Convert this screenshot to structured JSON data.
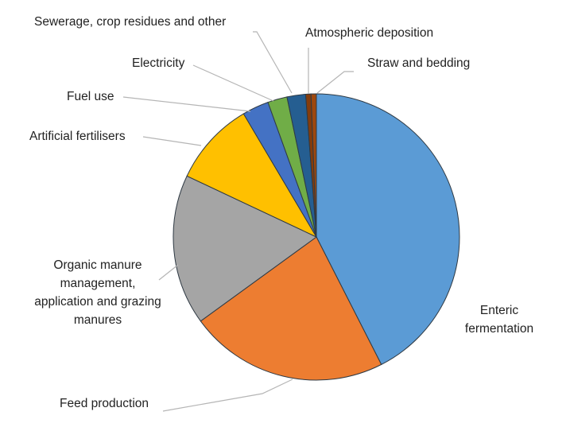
{
  "chart_data": {
    "type": "pie",
    "title": "",
    "legend": "none",
    "slices": [
      {
        "label": "Enteric fermentation",
        "lines": [
          "Enteric",
          "fermentation"
        ],
        "value": 42.5,
        "color": "#5b9bd5"
      },
      {
        "label": "Feed production",
        "lines": [
          "Feed production"
        ],
        "value": 22.5,
        "color": "#ed7d31"
      },
      {
        "label": "Organic manure management, application and grazing manures",
        "lines": [
          "Organic manure",
          "management,",
          "application and grazing",
          "manures"
        ],
        "value": 17.0,
        "color": "#a5a5a5"
      },
      {
        "label": "Artificial fertilisers",
        "lines": [
          "Artificial fertilisers"
        ],
        "value": 9.5,
        "color": "#ffc000"
      },
      {
        "label": "Fuel use",
        "lines": [
          "Fuel use"
        ],
        "value": 3.0,
        "color": "#4472c4"
      },
      {
        "label": "Electricity",
        "lines": [
          "Electricity"
        ],
        "value": 2.2,
        "color": "#70ad47"
      },
      {
        "label": "Sewerage, crop residues and other",
        "lines": [
          "Sewerage, crop residues and other"
        ],
        "value": 2.1,
        "color": "#255e91"
      },
      {
        "label": "Atmospheric deposition",
        "lines": [
          "Atmospheric deposition"
        ],
        "value": 0.6,
        "color": "#843c0c"
      },
      {
        "label": "Straw and bedding",
        "lines": [
          "Straw and bedding"
        ],
        "value": 0.6,
        "color": "#9e480e"
      }
    ]
  }
}
